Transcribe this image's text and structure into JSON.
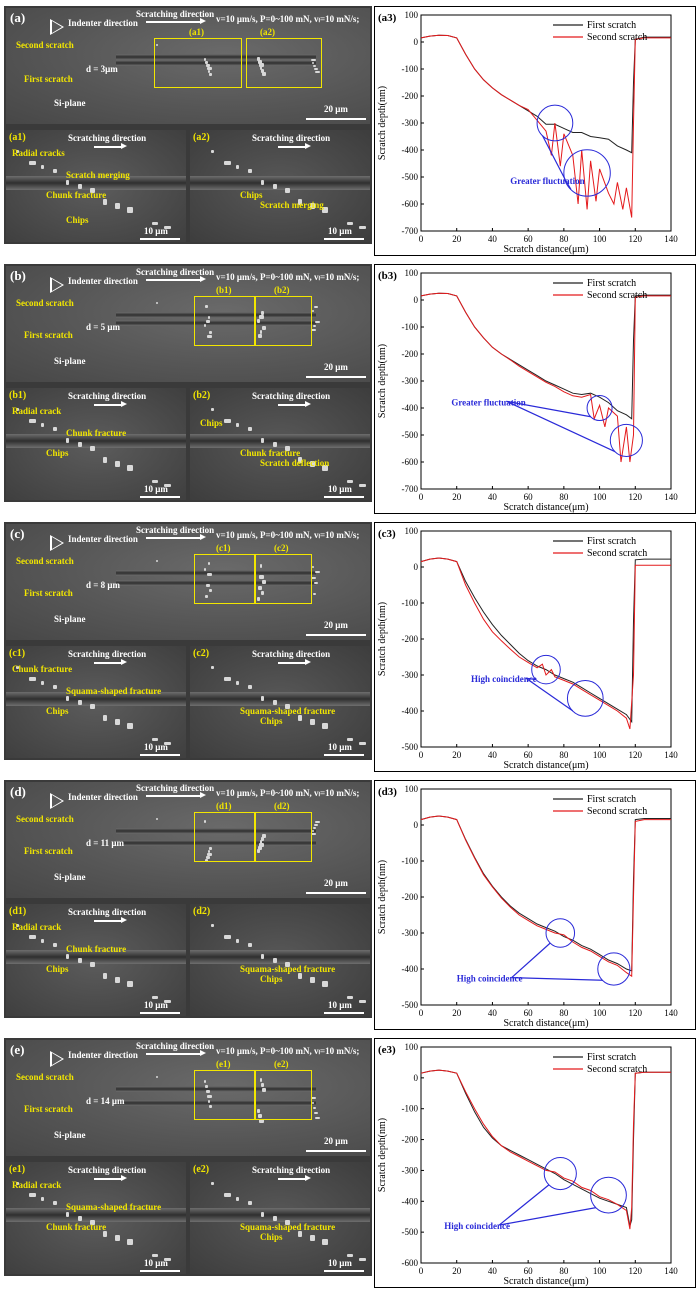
{
  "panels": [
    {
      "id": "a",
      "sem": {
        "label": "(a)",
        "indenter": "Indenter direction",
        "scratching": "Scratching direction",
        "params": "v=10 μm/s,  P=0~100 mN,  vₗ=10 mN/s;",
        "second": "Second scratch",
        "first": "First scratch",
        "plane": "Si-plane",
        "d": "d = 3μm",
        "scale": "20 μm",
        "box1": "(a1)",
        "box2": "(a2)",
        "left": {
          "label": "(a1)",
          "dir": "Scratching direction",
          "scale": "10 μm",
          "notes": [
            "Radial cracks",
            "Scratch merging",
            "Chunk fracture",
            "Chips"
          ]
        },
        "right": {
          "label": "(a2)",
          "dir": "Scratching direction",
          "scale": "10 μm",
          "notes": [
            "Chips",
            "Scratch merging"
          ]
        }
      },
      "note": "Greater fluctuation"
    },
    {
      "id": "b",
      "sem": {
        "label": "(b)",
        "indenter": "Indenter direction",
        "scratching": "Scratching direction",
        "params": "v=10 μm/s,  P=0~100 mN,  vₗ=10 mN/s;",
        "second": "Second scratch",
        "first": "First scratch",
        "plane": "Si-plane",
        "d": "d = 5 μm",
        "scale": "20 μm",
        "box1": "(b1)",
        "box2": "(b2)",
        "left": {
          "label": "(b1)",
          "dir": "Scratching direction",
          "scale": "10 μm",
          "notes": [
            "Radial crack",
            "Chunk fracture",
            "Chips"
          ]
        },
        "right": {
          "label": "(b2)",
          "dir": "Scratching direction",
          "scale": "10 μm",
          "notes": [
            "Chunk fracture",
            "Scratch deflection",
            "Chips"
          ]
        }
      },
      "note": "Greater fluctuation"
    },
    {
      "id": "c",
      "sem": {
        "label": "(c)",
        "indenter": "Indenter direction",
        "scratching": "Scratching direction",
        "params": "v=10 μm/s,  P=0~100 mN,  vₗ=10 mN/s;",
        "second": "Second scratch",
        "first": "First scratch",
        "plane": "Si-plane",
        "d": "d = 8 μm",
        "scale": "20 μm",
        "box1": "(c1)",
        "box2": "(c2)",
        "left": {
          "label": "(c1)",
          "dir": "Scratching direction",
          "scale": "10 μm",
          "notes": [
            "Chunk fracture",
            "Squama-shaped fracture",
            "Chips"
          ]
        },
        "right": {
          "label": "(c2)",
          "dir": "Scratching direction",
          "scale": "10 μm",
          "notes": [
            "Squama-shaped fracture",
            "Chips"
          ]
        }
      },
      "note": "High coincidence"
    },
    {
      "id": "d",
      "sem": {
        "label": "(d)",
        "indenter": "Indenter direction",
        "scratching": "Scratching direction",
        "params": "v=10 μm/s,  P=0~100 mN,  vₗ=10 mN/s;",
        "second": "Second scratch",
        "first": "First scratch",
        "plane": "Si-plane",
        "d": "d = 11 μm",
        "scale": "20 μm",
        "box1": "(d1)",
        "box2": "(d2)",
        "left": {
          "label": "(d1)",
          "dir": "Scratching direction",
          "scale": "10 μm",
          "notes": [
            "Radial crack",
            "Chunk fracture",
            "Chips"
          ]
        },
        "right": {
          "label": "(d2)",
          "dir": "",
          "scale": "10 μm",
          "notes": [
            "Squama-shaped fracture",
            "Chips"
          ]
        }
      },
      "note": "High coincidence"
    },
    {
      "id": "e",
      "sem": {
        "label": "(e)",
        "indenter": "Indenter direction",
        "scratching": "Scratching direction",
        "params": "v=10 μm/s,  P=0~100 mN,  vₗ=10 mN/s;",
        "second": "Second scratch",
        "first": "First scratch",
        "plane": "Si-plane",
        "d": "d = 14 μm",
        "scale": "20 μm",
        "box1": "(e1)",
        "box2": "(e2)",
        "left": {
          "label": "(e1)",
          "dir": "Scratching direction",
          "scale": "10 μm",
          "notes": [
            "Radial crack",
            "Squama-shaped fracture",
            "Chunk fracture"
          ]
        },
        "right": {
          "label": "(e2)",
          "dir": "Scratching direction",
          "scale": "10 μm",
          "notes": [
            "Squama-shaped fracture",
            "Chips"
          ]
        }
      },
      "note": "High coincidence"
    }
  ],
  "colors": {
    "first": "#222222",
    "second": "#e41a1c",
    "circle": "#2a2ad8",
    "annot": "#2a2ad8",
    "yellow": "#f2e600"
  },
  "chart_data": [
    {
      "type": "line",
      "label": "(a3)",
      "xlabel": "Scratch distance(μm)",
      "ylabel": "Scratch depth(nm)",
      "xlim": [
        0,
        140
      ],
      "ylim": [
        -700,
        100
      ],
      "xticks": [
        0,
        20,
        40,
        60,
        80,
        100,
        120,
        140
      ],
      "yticks": [
        100,
        0,
        -100,
        -200,
        -300,
        -400,
        -500,
        -600,
        -700
      ],
      "legend_position": "top-right",
      "series": [
        {
          "name": "First scratch",
          "x": [
            0,
            5,
            10,
            15,
            20,
            25,
            30,
            35,
            40,
            45,
            50,
            55,
            60,
            65,
            70,
            75,
            80,
            85,
            90,
            95,
            100,
            105,
            110,
            115,
            118,
            119,
            120,
            125,
            130,
            135,
            140
          ],
          "values": [
            15,
            22,
            25,
            24,
            15,
            -45,
            -100,
            -140,
            -170,
            -195,
            -215,
            -235,
            -255,
            -275,
            -305,
            -305,
            -320,
            -335,
            -335,
            -350,
            -355,
            -360,
            -385,
            -400,
            -410,
            -150,
            10,
            18,
            18,
            18,
            18
          ]
        },
        {
          "name": "Second scratch",
          "x": [
            0,
            5,
            10,
            15,
            20,
            25,
            30,
            35,
            40,
            45,
            50,
            55,
            60,
            65,
            70,
            73,
            75,
            78,
            80,
            85,
            88,
            90,
            93,
            95,
            98,
            100,
            105,
            108,
            110,
            113,
            115,
            118,
            119,
            120,
            125,
            130,
            135,
            140
          ],
          "values": [
            15,
            22,
            25,
            24,
            15,
            -45,
            -100,
            -140,
            -170,
            -195,
            -215,
            -235,
            -250,
            -290,
            -330,
            -420,
            -300,
            -460,
            -340,
            -420,
            -600,
            -400,
            -620,
            -440,
            -590,
            -470,
            -560,
            -600,
            -520,
            -620,
            -540,
            -650,
            -300,
            10,
            15,
            15,
            15,
            15
          ]
        }
      ],
      "annotation": "Greater fluctuation"
    },
    {
      "type": "line",
      "label": "(b3)",
      "xlabel": "Scratch distance(μm)",
      "ylabel": "Scratch depth(nm)",
      "xlim": [
        0,
        140
      ],
      "ylim": [
        -700,
        100
      ],
      "xticks": [
        0,
        20,
        40,
        60,
        80,
        100,
        120,
        140
      ],
      "yticks": [
        100,
        0,
        -100,
        -200,
        -300,
        -400,
        -500,
        -600,
        -700
      ],
      "legend_position": "top-right",
      "series": [
        {
          "name": "First scratch",
          "x": [
            0,
            5,
            10,
            15,
            20,
            25,
            30,
            35,
            40,
            45,
            50,
            55,
            60,
            65,
            70,
            75,
            80,
            85,
            90,
            95,
            100,
            105,
            110,
            115,
            118,
            119,
            120,
            125,
            130,
            135,
            140
          ],
          "values": [
            15,
            22,
            25,
            24,
            15,
            -45,
            -100,
            -140,
            -175,
            -200,
            -220,
            -240,
            -260,
            -280,
            -300,
            -315,
            -330,
            -345,
            -350,
            -345,
            -360,
            -380,
            -410,
            -425,
            -440,
            -150,
            15,
            18,
            18,
            18,
            18
          ]
        },
        {
          "name": "Second scratch",
          "x": [
            0,
            5,
            10,
            15,
            20,
            25,
            30,
            35,
            40,
            45,
            50,
            55,
            60,
            65,
            70,
            75,
            80,
            85,
            90,
            95,
            97,
            100,
            103,
            105,
            110,
            112,
            115,
            117,
            119,
            120,
            125,
            130,
            135,
            140
          ],
          "values": [
            15,
            22,
            25,
            24,
            15,
            -45,
            -100,
            -140,
            -175,
            -200,
            -222,
            -245,
            -265,
            -285,
            -305,
            -320,
            -340,
            -355,
            -360,
            -350,
            -440,
            -390,
            -470,
            -400,
            -430,
            -600,
            -470,
            -600,
            -500,
            10,
            15,
            15,
            15,
            15
          ]
        }
      ],
      "annotation": "Greater fluctuation"
    },
    {
      "type": "line",
      "label": "(c3)",
      "xlabel": "Scratch distance(μm)",
      "ylabel": "Scratch depth(nm)",
      "xlim": [
        0,
        140
      ],
      "ylim": [
        -500,
        100
      ],
      "xticks": [
        0,
        20,
        40,
        60,
        80,
        100,
        120,
        140
      ],
      "yticks": [
        100,
        0,
        -100,
        -200,
        -300,
        -400,
        -500
      ],
      "legend_position": "top-right",
      "series": [
        {
          "name": "First scratch",
          "x": [
            0,
            5,
            10,
            15,
            20,
            25,
            30,
            35,
            40,
            45,
            50,
            55,
            60,
            65,
            70,
            75,
            80,
            85,
            90,
            95,
            100,
            105,
            110,
            115,
            118,
            119,
            120,
            125,
            130,
            135,
            140
          ],
          "values": [
            15,
            22,
            25,
            22,
            15,
            -40,
            -85,
            -125,
            -160,
            -190,
            -215,
            -240,
            -260,
            -275,
            -285,
            -300,
            -310,
            -320,
            -335,
            -350,
            -365,
            -380,
            -395,
            -410,
            -430,
            -150,
            20,
            22,
            22,
            22,
            22
          ]
        },
        {
          "name": "Second scratch",
          "x": [
            0,
            5,
            10,
            15,
            20,
            25,
            30,
            35,
            40,
            45,
            50,
            55,
            60,
            65,
            68,
            70,
            73,
            75,
            80,
            85,
            90,
            95,
            100,
            105,
            110,
            115,
            117,
            119,
            120,
            125,
            130,
            135,
            140
          ],
          "values": [
            15,
            22,
            25,
            22,
            15,
            -50,
            -100,
            -145,
            -180,
            -205,
            -228,
            -250,
            -265,
            -280,
            -270,
            -300,
            -285,
            -305,
            -315,
            -325,
            -340,
            -355,
            -370,
            -385,
            -400,
            -420,
            -450,
            -300,
            5,
            5,
            5,
            5,
            5
          ]
        }
      ],
      "annotation": "High coincidence"
    },
    {
      "type": "line",
      "label": "(d3)",
      "xlabel": "Scratch distance(μm)",
      "ylabel": "Scratch depth(nm)",
      "xlim": [
        0,
        140
      ],
      "ylim": [
        -500,
        100
      ],
      "xticks": [
        0,
        20,
        40,
        60,
        80,
        100,
        120,
        140
      ],
      "yticks": [
        100,
        0,
        -100,
        -200,
        -300,
        -400,
        -500
      ],
      "legend_position": "top-right",
      "series": [
        {
          "name": "First scratch",
          "x": [
            0,
            5,
            10,
            15,
            20,
            25,
            30,
            35,
            40,
            45,
            50,
            55,
            60,
            65,
            70,
            75,
            80,
            85,
            90,
            95,
            100,
            105,
            110,
            115,
            118,
            119,
            120,
            125,
            130,
            135,
            140
          ],
          "values": [
            15,
            22,
            25,
            22,
            15,
            -40,
            -90,
            -135,
            -170,
            -200,
            -225,
            -245,
            -260,
            -275,
            -285,
            -295,
            -310,
            -320,
            -335,
            -345,
            -360,
            -375,
            -385,
            -400,
            -405,
            -150,
            15,
            18,
            18,
            18,
            18
          ]
        },
        {
          "name": "Second scratch",
          "x": [
            0,
            5,
            10,
            15,
            20,
            25,
            30,
            35,
            40,
            45,
            50,
            55,
            60,
            65,
            70,
            75,
            80,
            85,
            90,
            95,
            100,
            105,
            110,
            115,
            118,
            119,
            120,
            125,
            130,
            135,
            140
          ],
          "values": [
            15,
            22,
            25,
            22,
            15,
            -42,
            -92,
            -138,
            -172,
            -203,
            -228,
            -250,
            -265,
            -280,
            -290,
            -300,
            -305,
            -325,
            -340,
            -350,
            -365,
            -380,
            -390,
            -410,
            -420,
            -200,
            10,
            15,
            15,
            15,
            15
          ]
        }
      ],
      "annotation": "High coincidence"
    },
    {
      "type": "line",
      "label": "(e3)",
      "xlabel": "Scratch distance(μm)",
      "ylabel": "Scratch depth(nm)",
      "xlim": [
        0,
        140
      ],
      "ylim": [
        -600,
        100
      ],
      "xticks": [
        0,
        20,
        40,
        60,
        80,
        100,
        120,
        140
      ],
      "yticks": [
        100,
        0,
        -100,
        -200,
        -300,
        -400,
        -500,
        -600
      ],
      "legend_position": "top-right",
      "series": [
        {
          "name": "First scratch",
          "x": [
            0,
            5,
            10,
            15,
            20,
            25,
            30,
            35,
            40,
            45,
            50,
            55,
            60,
            65,
            70,
            75,
            80,
            85,
            90,
            95,
            100,
            105,
            110,
            115,
            117,
            118,
            119,
            120,
            125,
            130,
            135,
            140
          ],
          "values": [
            15,
            22,
            25,
            22,
            15,
            -50,
            -110,
            -160,
            -195,
            -220,
            -235,
            -250,
            -265,
            -280,
            -295,
            -310,
            -330,
            -345,
            -360,
            -375,
            -390,
            -400,
            -410,
            -420,
            -480,
            -460,
            -200,
            15,
            18,
            18,
            18,
            18
          ]
        },
        {
          "name": "Second scratch",
          "x": [
            0,
            5,
            10,
            15,
            20,
            25,
            30,
            35,
            40,
            45,
            50,
            55,
            60,
            65,
            70,
            75,
            80,
            85,
            90,
            95,
            100,
            105,
            110,
            115,
            117,
            118,
            119,
            120,
            125,
            130,
            135,
            140
          ],
          "values": [
            15,
            22,
            25,
            22,
            15,
            -45,
            -100,
            -150,
            -190,
            -220,
            -240,
            -255,
            -270,
            -285,
            -300,
            -305,
            -325,
            -335,
            -355,
            -365,
            -385,
            -395,
            -410,
            -430,
            -490,
            -420,
            -150,
            15,
            18,
            18,
            18,
            18
          ]
        }
      ],
      "annotation": "High coincidence"
    }
  ]
}
